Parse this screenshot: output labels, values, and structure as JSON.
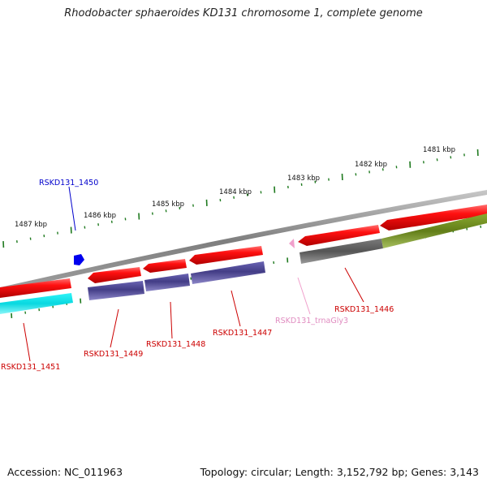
{
  "title": "Rhodobacter sphaeroides KD131 chromosome 1, complete genome",
  "footer": {
    "accession": "Accession: NC_011963",
    "summary": "Topology: circular; Length: 3,152,792 bp; Genes: 3,143"
  },
  "colors": {
    "backbone": "#8a8a8a",
    "tick": "#1f7a1f",
    "forward_gene": "#e00000",
    "cds_purple": "#4a4490",
    "cds_cyan": "#10e8ee",
    "cds_gray": "#5e5e5e",
    "cds_olive": "#6a8a1e",
    "trna": "#f0a0cc",
    "hypothetical": "#0000ee",
    "label_red": "#cc0000",
    "label_blue": "#0000cc",
    "label_pink": "#e08cc0"
  },
  "scale_labels": [
    "1481 kbp",
    "1482 kbp",
    "1483 kbp",
    "1484 kbp",
    "1485 kbp",
    "1486 kbp",
    "1487 kbp"
  ],
  "genes": [
    {
      "name": "RSKD131_1451",
      "color": "label_red"
    },
    {
      "name": "RSKD131_1450",
      "color": "label_blue"
    },
    {
      "name": "RSKD131_1449",
      "color": "label_red"
    },
    {
      "name": "RSKD131_1448",
      "color": "label_red"
    },
    {
      "name": "RSKD131_1447",
      "color": "label_red"
    },
    {
      "name": "RSKD131_trnaGly3",
      "color": "label_pink"
    },
    {
      "name": "RSKD131_1446",
      "color": "label_red"
    }
  ]
}
